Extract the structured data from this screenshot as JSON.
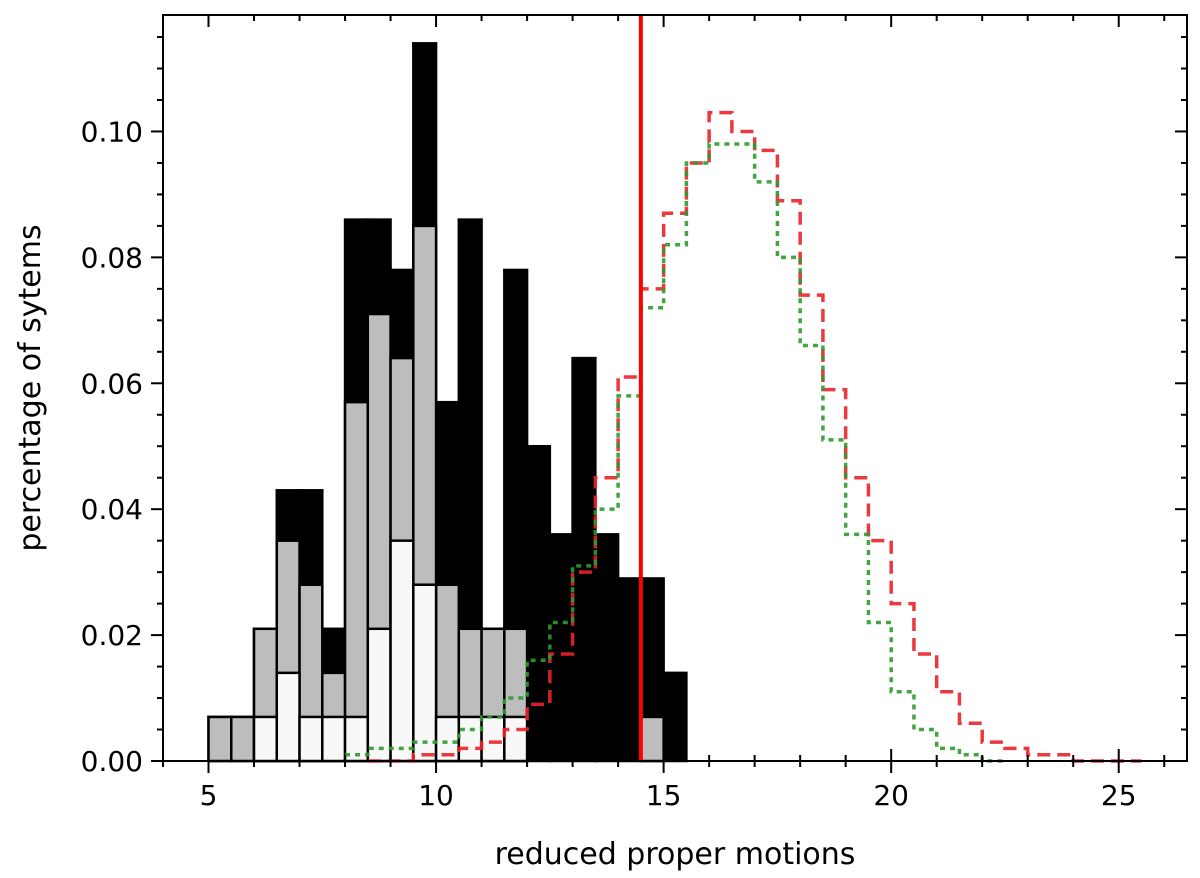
{
  "chart_data": {
    "type": "bar",
    "xlabel": "reduced proper motions",
    "ylabel": "percentage of sytems",
    "xlim": [
      4,
      26.5
    ],
    "ylim": [
      0,
      0.1185
    ],
    "xticks": [
      5,
      10,
      15,
      20,
      25
    ],
    "xtick_labels": [
      "5",
      "10",
      "15",
      "20",
      "25"
    ],
    "yticks": [
      0.0,
      0.02,
      0.04,
      0.06,
      0.08,
      0.1
    ],
    "ytick_labels": [
      "0.00",
      "0.02",
      "0.04",
      "0.06",
      "0.08",
      "0.10"
    ],
    "bin_width": 0.5,
    "stacked_histograms": [
      {
        "color": "#000000",
        "bins": [
          5.0,
          5.5,
          6.0,
          6.5,
          7.0,
          7.5,
          8.0,
          8.5,
          9.0,
          9.5,
          10.0,
          10.5,
          11.0,
          11.5,
          12.0,
          12.5,
          13.0,
          13.5,
          14.0,
          14.5,
          15.0
        ],
        "values": [
          0.007,
          0.007,
          0.021,
          0.043,
          0.043,
          0.021,
          0.086,
          0.086,
          0.078,
          0.114,
          0.057,
          0.086,
          0.021,
          0.078,
          0.05,
          0.036,
          0.064,
          0.036,
          0.029,
          0.029,
          0.014
        ]
      },
      {
        "color": "#bdbdbd",
        "bins": [
          5.0,
          5.5,
          6.0,
          6.5,
          7.0,
          7.5,
          8.0,
          8.5,
          9.0,
          9.5,
          10.0,
          10.5,
          11.0,
          11.5,
          14.5
        ],
        "values": [
          0.007,
          0.007,
          0.021,
          0.035,
          0.028,
          0.014,
          0.057,
          0.071,
          0.064,
          0.085,
          0.028,
          0.021,
          0.021,
          0.021,
          0.007
        ]
      },
      {
        "color": "#f8f8f8",
        "bins": [
          6.0,
          6.5,
          7.0,
          7.5,
          8.0,
          8.5,
          9.0,
          9.5,
          10.0,
          10.5,
          11.0,
          11.5
        ],
        "values": [
          0.007,
          0.014,
          0.007,
          0.007,
          0.007,
          0.021,
          0.035,
          0.028,
          0.007,
          0.007,
          0.007,
          0.007
        ]
      }
    ],
    "step_series": [
      {
        "color": "#e8242a",
        "style": "dashed",
        "bin_width": 0.5,
        "bins": [
          8.5,
          9.0,
          9.5,
          10.0,
          10.5,
          11.0,
          11.5,
          12.0,
          12.5,
          13.0,
          13.5,
          14.0,
          14.5,
          15.0,
          15.5,
          16.0,
          16.5,
          17.0,
          17.5,
          18.0,
          18.5,
          19.0,
          19.5,
          20.0,
          20.5,
          21.0,
          21.5,
          22.0,
          22.5,
          23.0,
          23.5,
          24.0,
          24.5,
          25.0
        ],
        "values": [
          0.0,
          0.0,
          0.001,
          0.001,
          0.002,
          0.003,
          0.005,
          0.009,
          0.017,
          0.03,
          0.045,
          0.061,
          0.075,
          0.087,
          0.095,
          0.103,
          0.1,
          0.097,
          0.089,
          0.074,
          0.059,
          0.045,
          0.035,
          0.025,
          0.017,
          0.011,
          0.006,
          0.003,
          0.002,
          0.001,
          0.001,
          0.0,
          0.0,
          0.0
        ]
      },
      {
        "color": "#2e9a2e",
        "style": "dotted",
        "bin_width": 0.5,
        "bins": [
          8.0,
          8.5,
          9.0,
          9.5,
          10.0,
          10.5,
          11.0,
          11.5,
          12.0,
          12.5,
          13.0,
          13.5,
          14.0,
          14.5,
          15.0,
          15.5,
          16.0,
          16.5,
          17.0,
          17.5,
          18.0,
          18.5,
          19.0,
          19.5,
          20.0,
          20.5,
          21.0,
          21.5,
          22.0
        ],
        "values": [
          0.001,
          0.002,
          0.002,
          0.003,
          0.003,
          0.005,
          0.007,
          0.01,
          0.016,
          0.022,
          0.031,
          0.04,
          0.058,
          0.072,
          0.082,
          0.095,
          0.098,
          0.098,
          0.092,
          0.08,
          0.066,
          0.051,
          0.036,
          0.022,
          0.011,
          0.005,
          0.002,
          0.001,
          0.0
        ]
      }
    ],
    "vertical_line": {
      "x": 14.5,
      "color": "#ff0000"
    }
  }
}
